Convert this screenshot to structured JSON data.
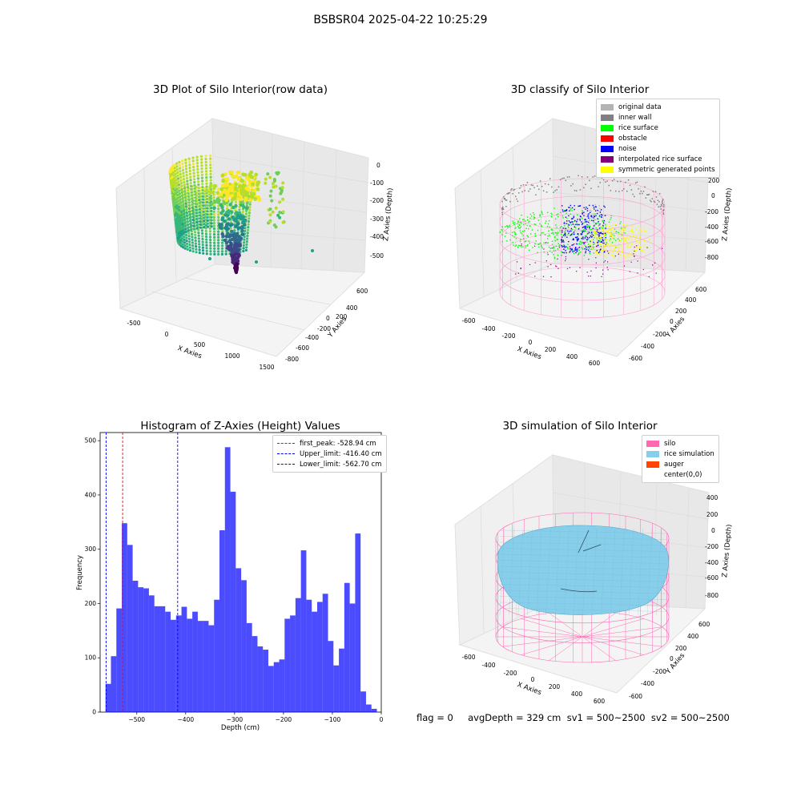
{
  "suptitle": "BSBSR04 2025-04-22 10:25:29",
  "info_line": "flag = 0     avgDepth = 329 cm  sv1 = 500~2500  sv2 = 500~2500",
  "chart_data": [
    {
      "type": "scatter",
      "title": "3D Plot of Silo Interior(row data)",
      "xlabel": "X Axies",
      "ylabel": "Y Axies",
      "zlabel": "Z Axies (Depth)",
      "x_ticks": [
        "-500",
        "0",
        "500",
        "1000",
        "1500"
      ],
      "y_ticks": [
        "600",
        "400",
        "200",
        "0",
        "-200",
        "-400",
        "-600",
        "-800"
      ],
      "z_ticks": [
        "0",
        "-100",
        "-200",
        "-300",
        "-400",
        "-500"
      ],
      "colormap": "viridis"
    },
    {
      "type": "scatter",
      "title": "3D classify of Silo Interior",
      "xlabel": "X Axies",
      "ylabel": "Y Axies",
      "zlabel": "Z Axies (Depth)",
      "x_ticks": [
        "-600",
        "-400",
        "-200",
        "0",
        "200",
        "400",
        "600"
      ],
      "y_ticks": [
        "600",
        "400",
        "200",
        "0",
        "-200",
        "-400",
        "-600"
      ],
      "z_ticks": [
        "400",
        "200",
        "0",
        "-200",
        "-400",
        "-600",
        "-800"
      ],
      "legend": [
        {
          "name": "original data",
          "color": "#b3b3b3"
        },
        {
          "name": "inner wall",
          "color": "#808080"
        },
        {
          "name": "rice surface",
          "color": "#00ff00"
        },
        {
          "name": "obstacle",
          "color": "#ff0000"
        },
        {
          "name": "noise",
          "color": "#0000ff"
        },
        {
          "name": "interpolated rice surface",
          "color": "#800080"
        },
        {
          "name": "symmetric generated points",
          "color": "#ffff00"
        }
      ]
    },
    {
      "type": "bar",
      "title": "Histogram of Z-Axies (Height) Values",
      "xlabel": "Depth (cm)",
      "ylabel": "Frequency",
      "xlim": [
        -575,
        0
      ],
      "ylim": [
        0,
        515
      ],
      "bin_start": -564,
      "bin_width": 11.1,
      "values": [
        52,
        103,
        191,
        348,
        308,
        242,
        230,
        228,
        215,
        195,
        195,
        185,
        170,
        178,
        194,
        172,
        185,
        168,
        168,
        160,
        207,
        335,
        488,
        406,
        265,
        243,
        164,
        140,
        121,
        115,
        85,
        92,
        97,
        172,
        178,
        210,
        298,
        207,
        185,
        203,
        218,
        131,
        86,
        117,
        238,
        200,
        329,
        38,
        14,
        6
      ],
      "color": "#0000ff",
      "x_ticks": [
        -500,
        -400,
        -300,
        -200,
        -100,
        0
      ],
      "y_ticks": [
        0,
        100,
        200,
        300,
        400,
        500
      ],
      "x_tick_labels": [
        "−500",
        "−400",
        "−300",
        "−200",
        "−100",
        "0"
      ],
      "y_tick_labels": [
        "0",
        "100",
        "200",
        "300",
        "400",
        "500"
      ],
      "lines": [
        {
          "name": "first_peak: -528.94 cm",
          "x": -528.94,
          "color": "#ff0000"
        },
        {
          "name": "Upper_limit: -416.40 cm",
          "x": -416.4,
          "color": "#0000ff"
        },
        {
          "name": "Lower_limit: -562.70 cm",
          "x": -562.7,
          "color": "#0000ff"
        }
      ],
      "legend_position": "upper right"
    },
    {
      "type": "area",
      "title": "3D simulation of Silo Interior",
      "xlabel": "X Axies",
      "ylabel": "Y Axies",
      "zlabel": "Z Axies (Depth)",
      "x_ticks": [
        "-600",
        "-400",
        "-200",
        "0",
        "200",
        "400",
        "600"
      ],
      "y_ticks": [
        "600",
        "400",
        "200",
        "0",
        "-200",
        "-400",
        "-600"
      ],
      "z_ticks": [
        "400",
        "200",
        "0",
        "-200",
        "-400",
        "-600",
        "-800"
      ],
      "legend": [
        {
          "name": "silo",
          "color": "#ff69b4"
        },
        {
          "name": "rice simulation",
          "color": "#87ceeb"
        },
        {
          "name": "auger",
          "color": "#ff4500"
        },
        {
          "name": "center(0,0)",
          "color": ""
        }
      ]
    }
  ]
}
